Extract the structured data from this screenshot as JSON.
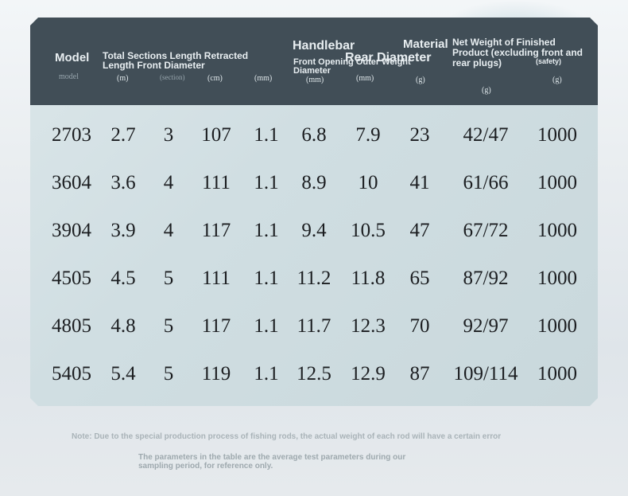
{
  "header": {
    "model": "Model",
    "model_unit": "model",
    "length_group": "Total Sections Length Retracted Length Front Diameter",
    "handlebar": "Handlebar",
    "front_opening": "Front Opening Outer Weight Diameter",
    "rear_diameter": "Rear Diameter",
    "material": "Material",
    "net_weight": "Net Weight of Finished Product (excluding front and rear plugs)",
    "safety": "(safety)",
    "units": {
      "total_length": "(m)",
      "sections": "(section)",
      "retracted": "(cm)",
      "front_diameter": "(mm)",
      "handlebar": "(mm)",
      "rear": "(mm)",
      "weight": "(g)",
      "net_weight": "(g)",
      "safety": "(g)"
    }
  },
  "rows": [
    {
      "model": "2703",
      "length": "2.7",
      "sections": "3",
      "retracted": "107",
      "front": "1.1",
      "handle": "6.8",
      "rear": "7.9",
      "weight": "23",
      "net": "42/47",
      "safety": "1000"
    },
    {
      "model": "3604",
      "length": "3.6",
      "sections": "4",
      "retracted": "111",
      "front": "1.1",
      "handle": "8.9",
      "rear": "10",
      "weight": "41",
      "net": "61/66",
      "safety": "1000"
    },
    {
      "model": "3904",
      "length": "3.9",
      "sections": "4",
      "retracted": "117",
      "front": "1.1",
      "handle": "9.4",
      "rear": "10.5",
      "weight": "47",
      "net": "67/72",
      "safety": "1000"
    },
    {
      "model": "4505",
      "length": "4.5",
      "sections": "5",
      "retracted": "111",
      "front": "1.1",
      "handle": "11.2",
      "rear": "11.8",
      "weight": "65",
      "net": "87/92",
      "safety": "1000"
    },
    {
      "model": "4805",
      "length": "4.8",
      "sections": "5",
      "retracted": "117",
      "front": "1.1",
      "handle": "11.7",
      "rear": "12.3",
      "weight": "70",
      "net": "92/97",
      "safety": "1000"
    },
    {
      "model": "5405",
      "length": "5.4",
      "sections": "5",
      "retracted": "119",
      "front": "1.1",
      "handle": "12.5",
      "rear": "12.9",
      "weight": "87",
      "net": "109/114",
      "safety": "1000"
    }
  ],
  "notes": {
    "note1": "Note: Due to the special production process of fishing rods, the actual weight of each rod will have a certain error",
    "note2": "The parameters in the table are the average test parameters during our sampling period, for reference only."
  }
}
